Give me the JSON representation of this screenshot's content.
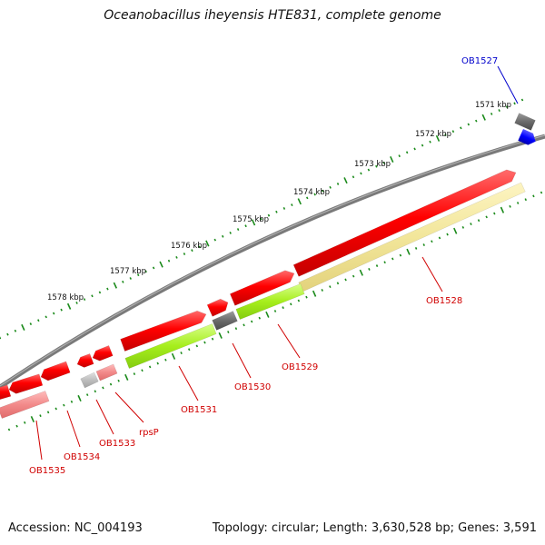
{
  "title": "Oceanobacillus iheyensis HTE831, complete genome",
  "footer": {
    "accession": "Accession: NC_004193",
    "topology": "Topology: circular; Length: 3,630,528 bp; Genes: 3,591"
  },
  "colors": {
    "cds_red": "#ff0000",
    "blast_pink": "#f08080",
    "blast_green": "#a6ee1c",
    "blast_khaki": "#f2e69a",
    "grey": "#6b6b6b",
    "light_grey": "#bdbdbd",
    "blue": "#0000ff",
    "label_red": "#d00000",
    "label_blue": "#0000cc",
    "tick_green": "#1a8a1a",
    "backbone": "#7a7a7a"
  },
  "scale": {
    "unit": "kbp",
    "labels": [
      "1571 kbp",
      "1572 kbp",
      "1573 kbp",
      "1574 kbp",
      "1575 kbp",
      "1576 kbp",
      "1577 kbp",
      "1578 kbp"
    ]
  },
  "genes": [
    {
      "name": "OB1527",
      "color": "blue"
    },
    {
      "name": "OB1528",
      "color": "red"
    },
    {
      "name": "OB1529",
      "color": "red"
    },
    {
      "name": "OB1530",
      "color": "red"
    },
    {
      "name": "OB1531",
      "color": "red"
    },
    {
      "name": "rpsP",
      "color": "red"
    },
    {
      "name": "OB1533",
      "color": "red"
    },
    {
      "name": "OB1534",
      "color": "red"
    },
    {
      "name": "OB1535",
      "color": "red"
    }
  ]
}
